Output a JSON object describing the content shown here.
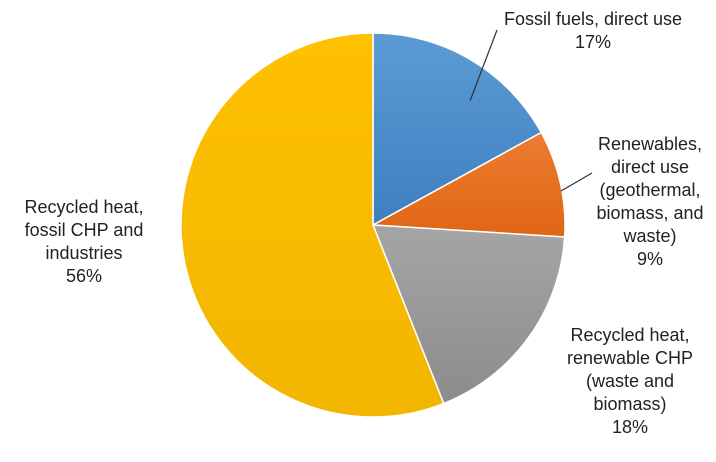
{
  "chart_data": {
    "type": "pie",
    "start_angle_deg": 0,
    "direction": "clockwise",
    "slices": [
      {
        "label_lines": [
          "Fossil fuels, direct use"
        ],
        "value": 17,
        "value_label": "17%",
        "color": "#5b9bd5",
        "color_dark": "#3f7fc0"
      },
      {
        "label_lines": [
          "Renewables,",
          "direct use",
          "(geothermal,",
          "biomass, and",
          "waste)"
        ],
        "value": 9,
        "value_label": "9%",
        "color": "#ed7d31",
        "color_dark": "#e06514"
      },
      {
        "label_lines": [
          "Recycled heat,",
          "renewable CHP",
          "(waste and",
          "biomass)"
        ],
        "value": 18,
        "value_label": "18%",
        "color": "#a5a5a5",
        "color_dark": "#8c8c8c"
      },
      {
        "label_lines": [
          "Recycled heat,",
          "fossil CHP and",
          "industries"
        ],
        "value": 56,
        "value_label": "56%",
        "color": "#ffc000",
        "color_dark": "#f2b600"
      }
    ],
    "legend": "none",
    "title": ""
  }
}
